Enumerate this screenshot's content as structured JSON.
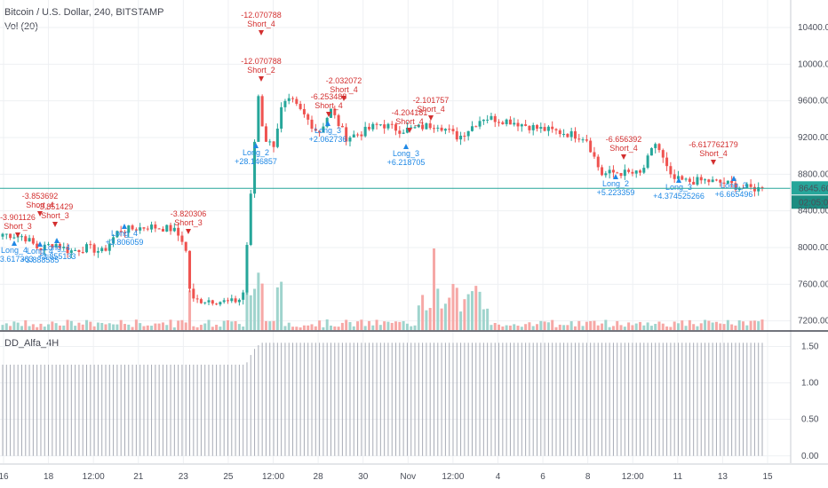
{
  "header": {
    "symbol": "Bitcoin / U.S. Dollar, 240, BITSTAMP",
    "volume_label": "Vol (20)",
    "indicator_label": "DD_Alfa_4H"
  },
  "price_axis": {
    "ticks": [
      "10400.00",
      "10000.00",
      "9600.00",
      "9200.00",
      "8800.00",
      "8400.00",
      "8000.00",
      "7600.00",
      "7200.00"
    ],
    "last_price": "8645.60",
    "countdown": "02:05:01"
  },
  "indicator_axis": {
    "ticks": [
      "1.50",
      "1.00",
      "0.50",
      "0.00"
    ]
  },
  "time_axis": {
    "ticks": [
      "16",
      "18",
      "12:00",
      "21",
      "23",
      "25",
      "12:00",
      "28",
      "30",
      "Nov",
      "12:00",
      "4",
      "6",
      "8",
      "12:00",
      "11",
      "13",
      "15"
    ]
  },
  "colors": {
    "up": "#26a69a",
    "down": "#ef5350",
    "up_vol": "#9fd4cd",
    "down_vol": "#f6a8a6",
    "short_text": "#d32f2f",
    "long_text": "#1e88e5",
    "price_line": "#26a69a",
    "indicator": "#a7abb5",
    "grid": "#eef0f3"
  },
  "chart_data": [
    {
      "type": "candlestick",
      "title": "Bitcoin / U.S. Dollar, 240, BITSTAMP",
      "ylim": [
        7100,
        10700
      ],
      "price_keypoints": [
        [
          0,
          8150
        ],
        [
          14,
          8120
        ],
        [
          24,
          7980
        ],
        [
          34,
          8050
        ],
        [
          44,
          7960
        ],
        [
          56,
          8000
        ],
        [
          66,
          7950
        ],
        [
          76,
          8180
        ],
        [
          84,
          8200
        ],
        [
          96,
          8230
        ],
        [
          112,
          8200
        ],
        [
          120,
          8050
        ],
        [
          124,
          7420
        ],
        [
          136,
          7430
        ],
        [
          150,
          7400
        ],
        [
          158,
          7450
        ],
        [
          164,
          8700
        ],
        [
          168,
          9700
        ],
        [
          172,
          9200
        ],
        [
          178,
          9100
        ],
        [
          184,
          9550
        ],
        [
          190,
          9600
        ],
        [
          198,
          9450
        ],
        [
          208,
          9250
        ],
        [
          216,
          9500
        ],
        [
          226,
          9200
        ],
        [
          236,
          9250
        ],
        [
          248,
          9350
        ],
        [
          262,
          9280
        ],
        [
          272,
          9300
        ],
        [
          286,
          9350
        ],
        [
          300,
          9200
        ],
        [
          316,
          9420
        ],
        [
          334,
          9380
        ],
        [
          352,
          9300
        ],
        [
          370,
          9250
        ],
        [
          384,
          9200
        ],
        [
          394,
          8800
        ],
        [
          404,
          8820
        ],
        [
          420,
          8800
        ],
        [
          430,
          9150
        ],
        [
          440,
          8750
        ],
        [
          450,
          8720
        ],
        [
          462,
          8730
        ],
        [
          476,
          8700
        ],
        [
          488,
          8650
        ],
        [
          500,
          8640
        ]
      ],
      "last_value": 8645.6,
      "signals": [
        {
          "type": "short",
          "label": "Short_3",
          "value": "-3.901126"
        },
        {
          "type": "short",
          "label": "Short_4",
          "value": "-3.853692"
        },
        {
          "type": "short",
          "label": "Short_3",
          "value": "-3.851429"
        },
        {
          "type": "short",
          "label": "Short_3",
          "value": "-3.820306"
        },
        {
          "type": "short",
          "label": "Short_4",
          "value": "-12.070788"
        },
        {
          "type": "short",
          "label": "Short_2",
          "value": "-12.070788"
        },
        {
          "type": "short",
          "label": "Short_4",
          "value": "-2.032072"
        },
        {
          "type": "short",
          "label": "Short_4",
          "value": "-6.253488"
        },
        {
          "type": "short",
          "label": "Short_4",
          "value": "-4.204181"
        },
        {
          "type": "short",
          "label": "Short_4",
          "value": "-2.101757"
        },
        {
          "type": "short",
          "label": "Short_4",
          "value": "-6.656392"
        },
        {
          "type": "short",
          "label": "Short_4",
          "value": "-6.617762179"
        },
        {
          "type": "long",
          "label": "Long_4",
          "value": "+3.617363"
        },
        {
          "type": "long",
          "label": "Long_4",
          "value": "+3.888585"
        },
        {
          "type": "long",
          "label": "Long_4",
          "value": "+3.855133"
        },
        {
          "type": "long",
          "label": "Long_4",
          "value": "+3.806059"
        },
        {
          "type": "long",
          "label": "Long_2",
          "value": "+28.146857"
        },
        {
          "type": "long",
          "label": "Long_3",
          "value": "+2.062736"
        },
        {
          "type": "long",
          "label": "Long_3",
          "value": "+6.218705"
        },
        {
          "type": "long",
          "label": "Long_2",
          "value": "+5.223359"
        },
        {
          "type": "long",
          "label": "Long_3",
          "value": "+4.374525266"
        },
        {
          "type": "long",
          "label": "Long_3",
          "value": "+6.665496"
        }
      ]
    },
    {
      "type": "bar",
      "title": "Vol (20)",
      "note": "volume histogram, spike around the Oct 25 rally"
    },
    {
      "type": "bar",
      "title": "DD_Alfa_4H",
      "ylim": [
        -0.1,
        1.7
      ],
      "levels": [
        [
          0,
          1.25
        ],
        [
          160,
          1.25
        ],
        [
          165,
          1.45
        ],
        [
          170,
          1.55
        ],
        [
          500,
          1.55
        ]
      ]
    }
  ]
}
